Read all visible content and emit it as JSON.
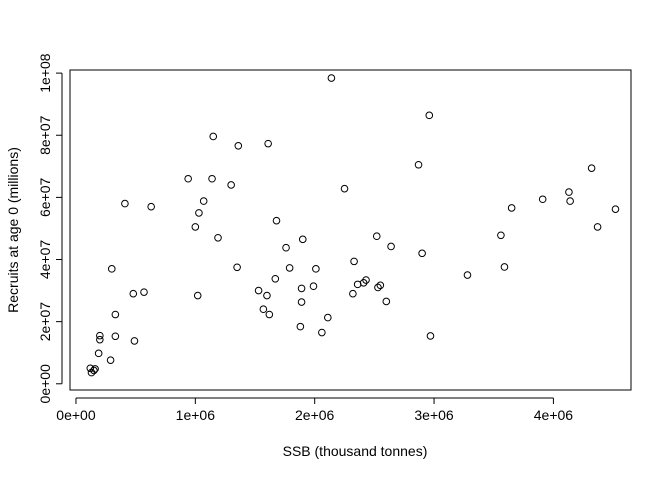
{
  "chart_data": {
    "type": "scatter",
    "title": "",
    "xlabel": "SSB (thousand tonnes)",
    "ylabel": "Recruits at age 0 (millions)",
    "xlim": [
      -50000,
      4650000
    ],
    "ylim": [
      -2000000,
      101000000
    ],
    "xticks": [
      0,
      1000000,
      2000000,
      3000000,
      4000000
    ],
    "xtick_labels": [
      "0e+00",
      "1e+06",
      "2e+06",
      "3e+06",
      "4e+06"
    ],
    "yticks": [
      0,
      20000000,
      40000000,
      60000000,
      80000000,
      100000000
    ],
    "ytick_labels": [
      "0e+00",
      "2e+07",
      "4e+07",
      "6e+07",
      "8e+07",
      "1e+08"
    ],
    "grid": false,
    "points": [
      [
        120000,
        5000000
      ],
      [
        130000,
        3600000
      ],
      [
        150000,
        4300000
      ],
      [
        160000,
        4800000
      ],
      [
        190000,
        9800000
      ],
      [
        200000,
        14200000
      ],
      [
        200000,
        15500000
      ],
      [
        290000,
        7600000
      ],
      [
        300000,
        37000000
      ],
      [
        330000,
        15300000
      ],
      [
        330000,
        22300000
      ],
      [
        410000,
        58000000
      ],
      [
        480000,
        29000000
      ],
      [
        490000,
        13800000
      ],
      [
        570000,
        29500000
      ],
      [
        630000,
        57000000
      ],
      [
        940000,
        66000000
      ],
      [
        1000000,
        50500000
      ],
      [
        1020000,
        28400000
      ],
      [
        1030000,
        55000000
      ],
      [
        1070000,
        58800000
      ],
      [
        1140000,
        66000000
      ],
      [
        1150000,
        79600000
      ],
      [
        1190000,
        47000000
      ],
      [
        1300000,
        64000000
      ],
      [
        1350000,
        37500000
      ],
      [
        1360000,
        76600000
      ],
      [
        1530000,
        30000000
      ],
      [
        1570000,
        24000000
      ],
      [
        1600000,
        28400000
      ],
      [
        1610000,
        77300000
      ],
      [
        1620000,
        22300000
      ],
      [
        1670000,
        33800000
      ],
      [
        1680000,
        52500000
      ],
      [
        1760000,
        43800000
      ],
      [
        1790000,
        37300000
      ],
      [
        1880000,
        18400000
      ],
      [
        1890000,
        26300000
      ],
      [
        1890000,
        30700000
      ],
      [
        1900000,
        46500000
      ],
      [
        1990000,
        31400000
      ],
      [
        2010000,
        37000000
      ],
      [
        2060000,
        16500000
      ],
      [
        2110000,
        21300000
      ],
      [
        2140000,
        98400000
      ],
      [
        2250000,
        62800000
      ],
      [
        2320000,
        29000000
      ],
      [
        2330000,
        39400000
      ],
      [
        2360000,
        32000000
      ],
      [
        2410000,
        32500000
      ],
      [
        2430000,
        33400000
      ],
      [
        2520000,
        47500000
      ],
      [
        2530000,
        31000000
      ],
      [
        2550000,
        31700000
      ],
      [
        2600000,
        26500000
      ],
      [
        2640000,
        44200000
      ],
      [
        2870000,
        70500000
      ],
      [
        2900000,
        42000000
      ],
      [
        2960000,
        86400000
      ],
      [
        2970000,
        15400000
      ],
      [
        3280000,
        35000000
      ],
      [
        3560000,
        47800000
      ],
      [
        3590000,
        37600000
      ],
      [
        3650000,
        56600000
      ],
      [
        3910000,
        59400000
      ],
      [
        4130000,
        61700000
      ],
      [
        4140000,
        58800000
      ],
      [
        4320000,
        69400000
      ],
      [
        4370000,
        50500000
      ],
      [
        4520000,
        56200000
      ]
    ]
  }
}
